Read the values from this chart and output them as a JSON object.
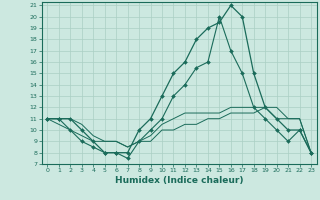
{
  "xlabel": "Humidex (Indice chaleur)",
  "background_color": "#cce8e0",
  "line_color": "#1a6b5a",
  "grid_color": "#aacfc4",
  "x_values": [
    0,
    1,
    2,
    3,
    4,
    5,
    6,
    7,
    8,
    9,
    10,
    11,
    12,
    13,
    14,
    15,
    16,
    17,
    18,
    19,
    20,
    21,
    22,
    23
  ],
  "series": {
    "line1": [
      11,
      11,
      11,
      10,
      9,
      8,
      8,
      8,
      10,
      11,
      13,
      15,
      16,
      18,
      19,
      19.5,
      21,
      20,
      15,
      12,
      11,
      10,
      10,
      8
    ],
    "line2": [
      11,
      11,
      10,
      9,
      8.5,
      8,
      8,
      7.5,
      9,
      10,
      11,
      13,
      14,
      15.5,
      16,
      20,
      17,
      15,
      12,
      11,
      10,
      9,
      10,
      8
    ],
    "line3": [
      11,
      10.5,
      10,
      9.5,
      9,
      9,
      9,
      8.5,
      9,
      9.5,
      10.5,
      11,
      11.5,
      11.5,
      11.5,
      11.5,
      12,
      12,
      12,
      12,
      11,
      11,
      11,
      8
    ],
    "line4": [
      11,
      11,
      11,
      10.5,
      9.5,
      9,
      9,
      8.5,
      9,
      9,
      10,
      10,
      10.5,
      10.5,
      11,
      11,
      11.5,
      11.5,
      11.5,
      12,
      12,
      11,
      11,
      8
    ]
  },
  "xlim": [
    0,
    23
  ],
  "ylim": [
    7,
    21
  ],
  "yticks": [
    7,
    8,
    9,
    10,
    11,
    12,
    13,
    14,
    15,
    16,
    17,
    18,
    19,
    20,
    21
  ],
  "xticks": [
    0,
    1,
    2,
    3,
    4,
    5,
    6,
    7,
    8,
    9,
    10,
    11,
    12,
    13,
    14,
    15,
    16,
    17,
    18,
    19,
    20,
    21,
    22,
    23
  ]
}
